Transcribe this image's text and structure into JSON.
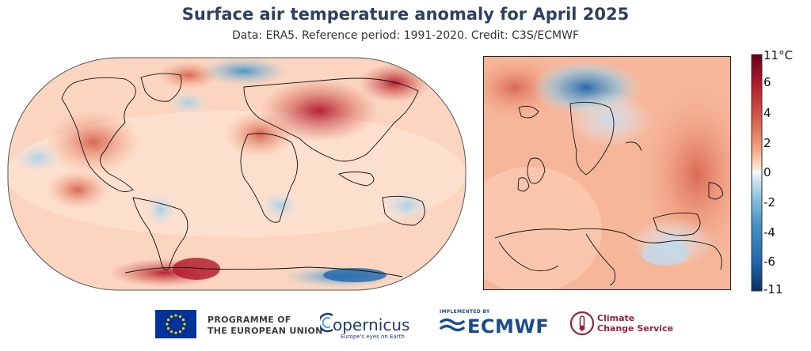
{
  "title": "Surface air temperature anomaly for April 2025",
  "subtitle": "Data: ERA5.  Reference period: 1991-2020.  Credit: C3S/ECMWF",
  "colorbar": {
    "top_label": "11°C",
    "ticks": [
      "6",
      "4",
      "2",
      "0",
      "-2",
      "-4",
      "-6"
    ],
    "bottom_label": "-11",
    "colors": {
      "max": "#67001f",
      "warm": "#d6604d",
      "light_warm": "#fddbc7",
      "neutral": "#f7f7f7",
      "light_cool": "#d1e5f0",
      "cool": "#4393c3",
      "min": "#053061"
    }
  },
  "footer": {
    "eu_line1": "PROGRAMME OF",
    "eu_line2": "THE EUROPEAN UNION",
    "copernicus": "opernicus",
    "copernicus_tagline": "Europe's eyes on Earth",
    "implemented_by": "IMPLEMENTED BY",
    "ecmwf": "ECMWF",
    "c3s_line1": "Climate",
    "c3s_line2": "Change Service"
  },
  "icons": [
    "eu-flag-icon",
    "copernicus-logo-icon",
    "ecmwf-logo-icon",
    "c3s-logo-icon"
  ]
}
